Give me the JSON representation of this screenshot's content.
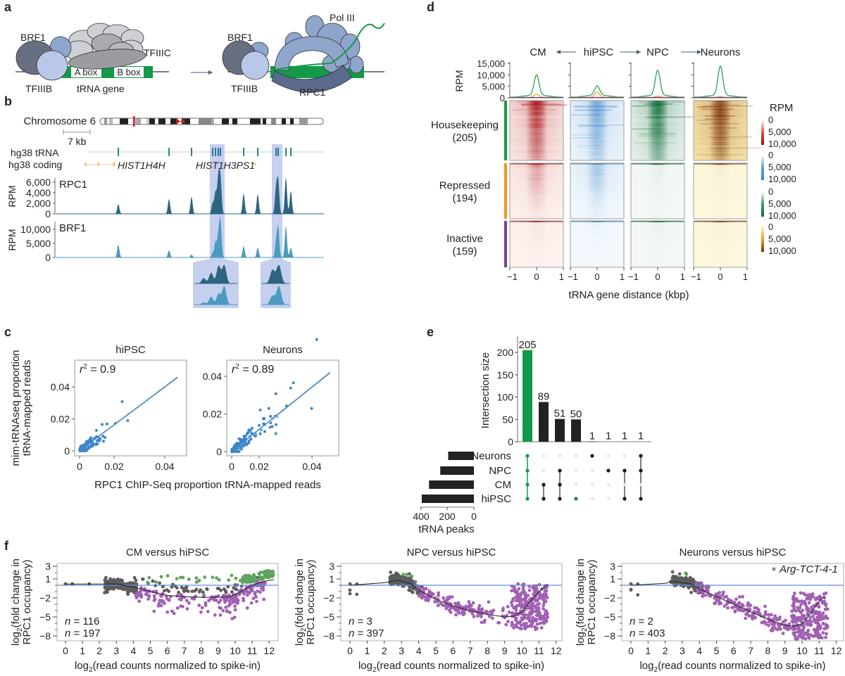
{
  "panel_labels": [
    "a",
    "b",
    "c",
    "d",
    "e",
    "f"
  ],
  "panel_a": {
    "left": {
      "brf1": "BRF1",
      "tfiiic": "TFIIIC",
      "tfiiib": "TFIIIB",
      "gene": "tRNA gene",
      "a_box": "A box",
      "b_box": "B box"
    },
    "right": {
      "brf1": "BRF1",
      "tfiiib": "TFIIIB",
      "pol3": "Pol III",
      "rpc1": "RPC1"
    },
    "colors": {
      "gene": "#129a48",
      "tfiiib_dark": "#676f80",
      "tfiiib_light": "#b9c7e8",
      "pol3": "#8ea5cc",
      "rpc1": "#5a6a8c",
      "tfiiic": "#cfd0d3"
    }
  },
  "panel_b": {
    "chromosome": "Chromosome 6",
    "scale_bar": "7 kb",
    "trna_track": "hg38 tRNA",
    "coding_track": "hg38 coding",
    "genes": [
      "HIST1H4H",
      "HIST1H3PS1"
    ]
  },
  "chart_data": [
    {
      "id": "b",
      "type": "area",
      "ylabel": "RPM",
      "series": [
        {
          "name": "RPC1",
          "color": "#2d6580",
          "ytick_labels": [
            "0",
            "2,000",
            "4,000",
            "6,000"
          ],
          "yticks": [
            0,
            2000,
            4000,
            6000
          ],
          "peak_values": [
            1800,
            2800,
            3200,
            2000,
            4000,
            6500,
            6800,
            3800,
            3700,
            4500,
            6100,
            6800,
            4300
          ]
        },
        {
          "name": "BRF1",
          "color": "#4a9bbd",
          "ytick_labels": [
            "0",
            "5,000",
            "10,000"
          ],
          "yticks": [
            0,
            5000,
            10000
          ],
          "peak_values": [
            4500,
            2500,
            1000,
            1500,
            5500,
            7500,
            12800,
            4000,
            3500,
            5000,
            10500,
            11000,
            3500
          ]
        }
      ]
    },
    {
      "id": "c",
      "type": "scatter",
      "ylabel": [
        "mim-tRNAseq proportion",
        "tRNA-mapped reads"
      ],
      "xlabel": "RPC1 ChIP-Seq proportion tRNA-mapped reads",
      "color": "#3a86c8",
      "plots": [
        {
          "title": "hiPSC",
          "r2_symbol": "r",
          "r2_exp": "2",
          "r2_value": " = 0.9",
          "xticks": [
            "0",
            "0.02",
            "0.04"
          ],
          "yticks": [
            "0",
            "0.02",
            "0.04"
          ],
          "fit_end": [
            0.046,
            0.046
          ]
        },
        {
          "title": "Neurons",
          "r2_symbol": "r",
          "r2_exp": "2",
          "r2_value": " = 0.89",
          "xticks": [
            "0",
            "0.02",
            "0.04"
          ],
          "yticks": [
            "0",
            "0.02",
            "0.04"
          ],
          "fit_end": [
            0.049,
            0.042
          ]
        }
      ]
    },
    {
      "id": "d",
      "type": "heatmap",
      "columns": [
        {
          "name": "CM",
          "max_color": "#a50f15",
          "bg": "#fdf1ee"
        },
        {
          "name": "hiPSC",
          "max_color": "#3b86c6",
          "bg": "#f3f8fd"
        },
        {
          "name": "NPC",
          "max_color": "#0b6b35",
          "bg": "#f3f8f6"
        },
        {
          "name": "Neurons",
          "max_color": "#7a2d05",
          "bg": "#fdf8dc"
        }
      ],
      "arrows": [
        "left",
        "right",
        "right"
      ],
      "groups": [
        {
          "name": "Housekeeping",
          "count": "(205)",
          "color": "#1a9a4a"
        },
        {
          "name": "Repressed",
          "count": "(194)",
          "color": "#f7941d"
        },
        {
          "name": "Inactive",
          "count": "(159)",
          "color": "#7b3f99"
        }
      ],
      "profile": {
        "ylabel": "RPM",
        "ytick_labels": [
          "15,000",
          "10,000",
          "5,000",
          "0"
        ],
        "ylim": [
          0,
          15000
        ],
        "peak_rpm": {
          "CM": {
            "Housekeeping": 10000,
            "Repressed": 1500,
            "Inactive": 150
          },
          "hiPSC": {
            "Housekeeping": 5200,
            "Repressed": 2500,
            "Inactive": 150
          },
          "NPC": {
            "Housekeeping": 12000,
            "Repressed": 700,
            "Inactive": 150
          },
          "Neurons": {
            "Housekeeping": 13800,
            "Repressed": 500,
            "Inactive": 150
          }
        }
      },
      "colorbar": {
        "title": "RPM",
        "tick_labels": [
          "0",
          "5,000",
          "10,000"
        ]
      },
      "xtick_labels": [
        "−1",
        "0",
        "1"
      ],
      "xlabel": "tRNA gene distance (kbp)"
    },
    {
      "id": "e",
      "type": "bar",
      "ylabel": "Intersection size",
      "yticks": [
        0,
        50,
        100,
        150,
        200
      ],
      "values": [
        205,
        89,
        51,
        50,
        1,
        1,
        1,
        1
      ],
      "bar_colors": [
        "#129a48",
        "#222222",
        "#222222",
        "#222222",
        "#3a6b7e",
        "#999999",
        "#999999",
        "#999999"
      ],
      "bar_colors_note_free": true,
      "sets": [
        "Neurons",
        "NPC",
        "CM",
        "hiPSC"
      ],
      "set_sizes": [
        195,
        255,
        340,
        395
      ],
      "membership": [
        [
          1,
          1,
          1,
          1
        ],
        [
          0,
          0,
          1,
          1
        ],
        [
          0,
          1,
          1,
          1
        ],
        [
          0,
          0,
          0,
          1
        ],
        [
          1,
          0,
          0,
          0
        ],
        [
          0,
          1,
          0,
          0
        ],
        [
          0,
          1,
          0,
          1
        ],
        [
          1,
          1,
          0,
          1
        ]
      ],
      "set_axis_ticks": [
        "400",
        "200",
        "0"
      ],
      "set_axis_label": "tRNA peaks"
    },
    {
      "id": "f",
      "type": "scatter",
      "ylabel": [
        "log",
        "2",
        "(fold change in",
        "RPC1 occupancy)"
      ],
      "xlabel": [
        "log",
        "2",
        "(read counts normalized to spike-in)"
      ],
      "yticks": [
        "3",
        "1",
        "−2",
        "−5",
        "−8"
      ],
      "xticks": [
        "0",
        "1",
        "2",
        "3",
        "4",
        "5",
        "6",
        "7",
        "8",
        "9",
        "10",
        "11",
        "12"
      ],
      "colors": {
        "up": "#5fa35f",
        "down": "#a160b4",
        "ns": "#5c5c5c",
        "zero_line": "#5b8fd6"
      },
      "legend": "Arg-TCT-4-1",
      "plots": [
        {
          "title": "CM versus hiPSC",
          "n_symbol": "n",
          "n_up": " = 116",
          "n_down": " = 197",
          "loess": [
            [
              0,
              0.2
            ],
            [
              2,
              0.2
            ],
            [
              3,
              0.2
            ],
            [
              4,
              -0.3
            ],
            [
              5,
              -1.0
            ],
            [
              6,
              -1.6
            ],
            [
              7,
              -1.8
            ],
            [
              8,
              -1.9
            ],
            [
              9,
              -1.9
            ],
            [
              9.7,
              -1.8
            ],
            [
              10.2,
              -1.2
            ],
            [
              11,
              0
            ],
            [
              11.7,
              0.6
            ],
            [
              12.3,
              0.9
            ]
          ]
        },
        {
          "title": "NPC versus hiPSC",
          "n_symbol": "n",
          "n_up": " = 3",
          "n_down": " = 397",
          "loess": [
            [
              0,
              0
            ],
            [
              2,
              0.4
            ],
            [
              2.8,
              0.8
            ],
            [
              3.5,
              0.3
            ],
            [
              4,
              -0.8
            ],
            [
              5,
              -2.2
            ],
            [
              6,
              -3.3
            ],
            [
              7,
              -4
            ],
            [
              8,
              -4.6
            ],
            [
              9,
              -5
            ],
            [
              9.5,
              -4.9
            ],
            [
              10,
              -4.2
            ],
            [
              10.5,
              -2.5
            ],
            [
              11,
              -1
            ],
            [
              11.5,
              0.2
            ]
          ]
        },
        {
          "title": "Neurons versus hiPSC",
          "n_symbol": "n",
          "n_up": " = 2",
          "n_down": " = 403",
          "loess": [
            [
              0,
              0
            ],
            [
              2,
              0.3
            ],
            [
              2.5,
              0.6
            ],
            [
              3.5,
              0.2
            ],
            [
              4,
              -0.6
            ],
            [
              5,
              -1.8
            ],
            [
              6,
              -3.0
            ],
            [
              7,
              -4.2
            ],
            [
              8,
              -5.4
            ],
            [
              9,
              -6.3
            ],
            [
              9.5,
              -6.5
            ],
            [
              10,
              -6.1
            ],
            [
              10.5,
              -4.5
            ],
            [
              11,
              -2.5
            ],
            [
              11.3,
              -1.7
            ]
          ]
        }
      ]
    }
  ]
}
